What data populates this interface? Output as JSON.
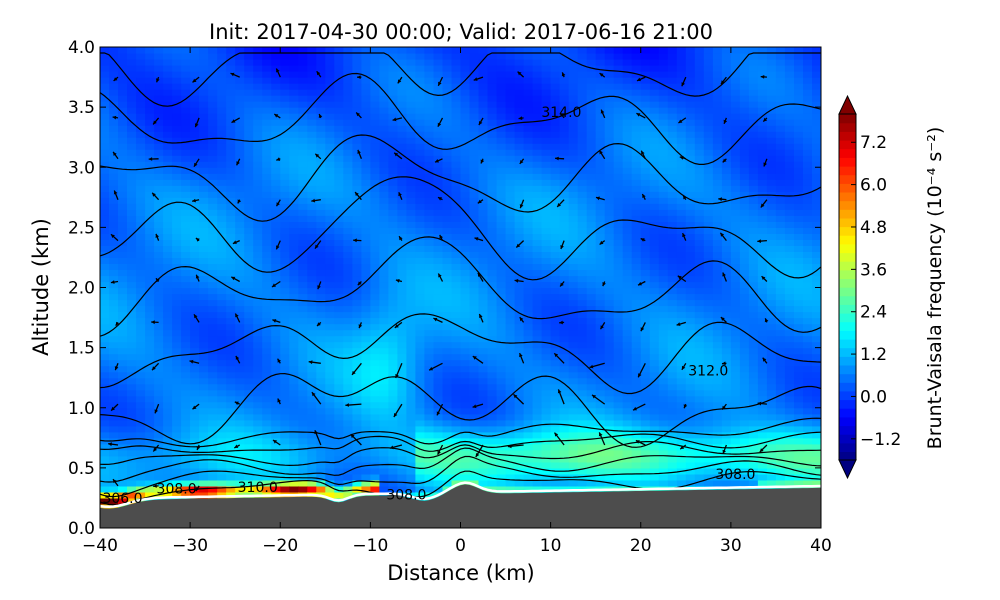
{
  "chart_data": {
    "type": "heatmap",
    "title": "Init: 2017-04-30 00:00; Valid: 2017-06-16 21:00",
    "xlabel": "Distance (km)",
    "ylabel": "Altitude (km)",
    "xlim": [
      -40,
      40
    ],
    "ylim": [
      0.0,
      4.0
    ],
    "x_ticks": [
      "−40",
      "−30",
      "−20",
      "−10",
      "0",
      "10",
      "20",
      "30",
      "40"
    ],
    "y_ticks": [
      "0.0",
      "0.5",
      "1.0",
      "1.5",
      "2.0",
      "2.5",
      "3.0",
      "3.5",
      "4.0"
    ],
    "colorbar": {
      "label": "Brunt-Vaisala frequency (10⁻⁴ s⁻²)",
      "ticks": [
        "−1.2",
        "0.0",
        "1.2",
        "2.4",
        "3.6",
        "4.8",
        "6.0",
        "7.2"
      ],
      "range": [
        -1.8,
        8.0
      ],
      "colormap": "jet",
      "extend": "both"
    },
    "contour_labels": [
      {
        "text": "314.0",
        "x": 11.2,
        "y": 3.46
      },
      {
        "text": "312.0",
        "x": 27.5,
        "y": 1.31
      },
      {
        "text": "308.0",
        "x": 30.5,
        "y": 0.45
      },
      {
        "text": "308.0",
        "x": -6,
        "y": 0.28
      },
      {
        "text": "310.0",
        "x": -22.5,
        "y": 0.34
      },
      {
        "text": "308.0",
        "x": -31.5,
        "y": 0.33
      },
      {
        "text": "306.0",
        "x": -37.5,
        "y": 0.25
      }
    ],
    "contour_levels_K": [
      306.0,
      308.0,
      310.0,
      312.0,
      314.0
    ],
    "terrain_color": "#4d4d4d",
    "wind_vectors": true
  }
}
